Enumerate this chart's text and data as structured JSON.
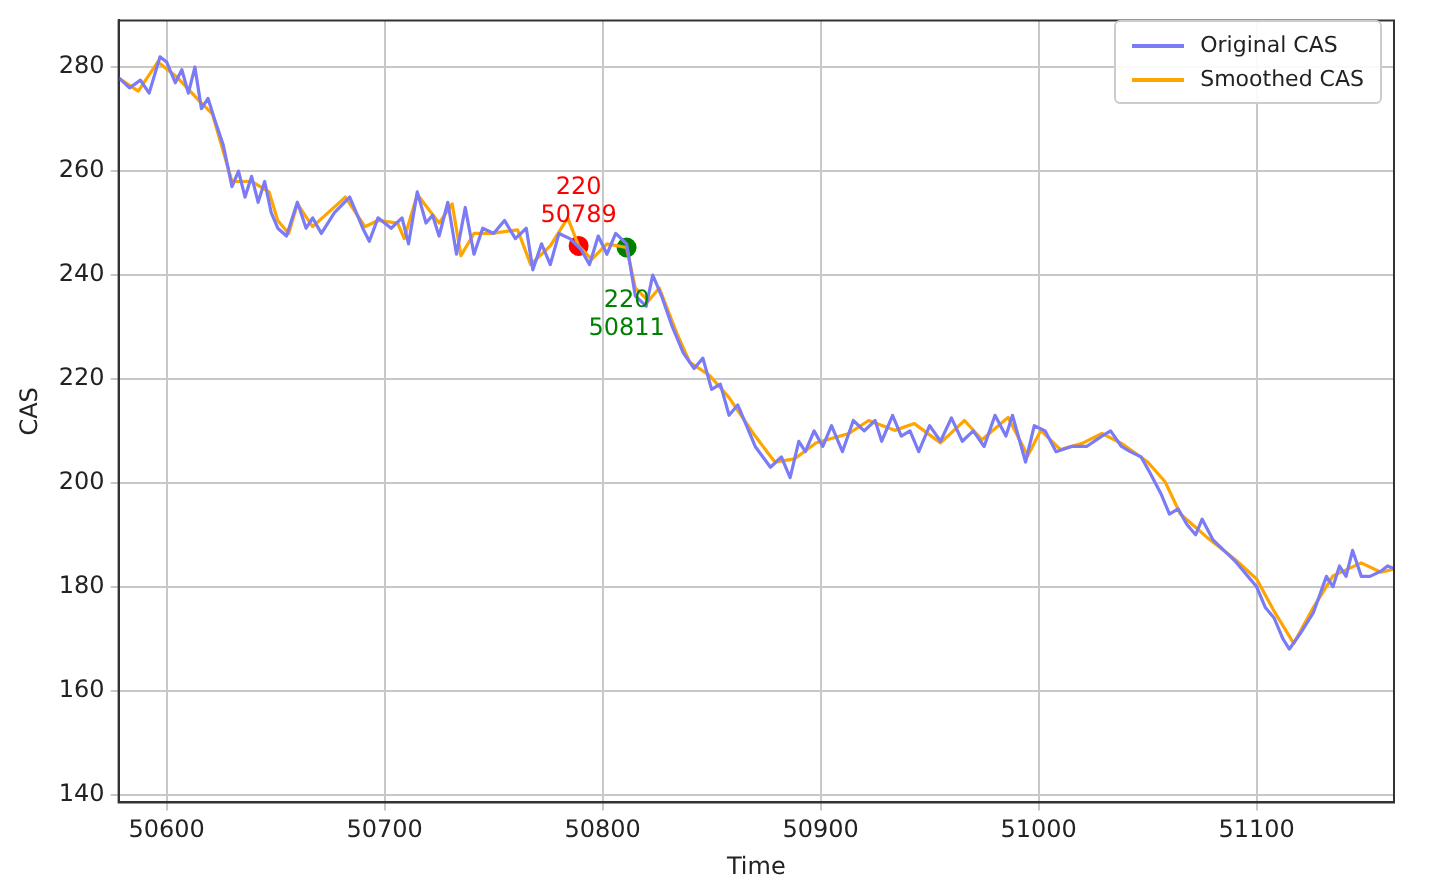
{
  "chart_data": {
    "type": "line",
    "xlabel": "Time",
    "ylabel": "CAS",
    "xlim": [
      50578,
      51163
    ],
    "ylim": [
      138.5,
      289
    ],
    "xticks": [
      50600,
      50700,
      50800,
      50900,
      51000,
      51100
    ],
    "yticks": [
      140,
      160,
      180,
      200,
      220,
      240,
      260,
      280
    ],
    "grid": true,
    "legend": "top right",
    "series": [
      {
        "name": "Original CAS",
        "color": "#7b7bf5",
        "type": "line",
        "marker": "none",
        "x": [
          50578,
          50583,
          50588,
          50592,
          50597,
          50600,
          50604,
          50607,
          50610,
          50613,
          50616,
          50619,
          50622,
          50626,
          50630,
          50633,
          50636,
          50639,
          50642,
          50645,
          50648,
          50651,
          50655,
          50660,
          50664,
          50667,
          50671,
          50677,
          50684,
          50690,
          50693,
          50697,
          50703,
          50708,
          50711,
          50715,
          50719,
          50722,
          50725,
          50729,
          50733,
          50737,
          50741,
          50745,
          50750,
          50755,
          50760,
          50765,
          50768,
          50772,
          50776,
          50780,
          50785,
          50790,
          50794,
          50798,
          50802,
          50806,
          50811,
          50815,
          50820,
          50823,
          50827,
          50832,
          50837,
          50842,
          50846,
          50850,
          50854,
          50858,
          50862,
          50866,
          50870,
          50877,
          50882,
          50886,
          50890,
          50893,
          50897,
          50901,
          50905,
          50910,
          50915,
          50920,
          50925,
          50928,
          50933,
          50937,
          50941,
          50945,
          50950,
          50955,
          50960,
          50965,
          50970,
          50975,
          50980,
          50985,
          50988,
          50994,
          50998,
          51003,
          51008,
          51015,
          51022,
          51029,
          51033,
          51038,
          51042,
          51047,
          51051,
          51056,
          51060,
          51064,
          51068,
          51072,
          51075,
          51080,
          51085,
          51090,
          51096,
          51100,
          51104,
          51108,
          51112,
          51115,
          51120,
          51126,
          51132,
          51135,
          51138,
          51141,
          51144,
          51148,
          51152,
          51157,
          51160,
          51163
        ],
        "values": [
          278,
          276,
          277.5,
          275,
          282,
          281,
          277,
          279.5,
          275,
          280,
          272,
          274,
          270,
          265,
          257,
          260,
          255,
          259,
          254,
          258,
          252,
          249,
          247.5,
          254,
          249,
          251,
          248,
          252,
          255,
          249,
          246.5,
          251,
          249,
          251,
          246,
          256,
          250,
          251.5,
          247.5,
          254,
          244,
          253,
          244,
          249,
          248,
          250.5,
          247,
          249,
          241,
          246,
          242,
          248,
          247,
          245,
          242,
          247.5,
          244,
          248,
          246,
          236,
          234,
          240,
          236,
          230,
          225,
          222,
          224,
          218,
          219,
          213,
          215,
          211,
          207,
          203,
          205,
          201,
          208,
          206,
          210,
          207,
          211,
          206,
          212,
          210,
          212,
          208,
          213,
          209,
          210,
          206,
          211,
          208,
          212.5,
          208,
          210,
          207,
          213,
          209,
          213,
          204,
          211,
          210,
          206,
          207,
          207,
          209,
          210,
          207,
          206,
          205,
          202,
          198,
          194,
          195,
          192,
          190,
          193,
          189,
          187,
          185,
          182,
          180,
          176,
          174,
          170,
          168,
          171,
          175,
          182,
          180,
          184,
          182,
          187,
          182,
          182,
          183,
          184,
          183.5
        ]
      },
      {
        "name": "Smoothed CAS",
        "color": "#ffa500",
        "type": "line",
        "marker": "none",
        "x": [
          50578,
          50587,
          50596,
          50605,
          50615,
          50621,
          50630,
          50639,
          50647,
          50651,
          50656,
          50660,
          50667,
          50682,
          50691,
          50697,
          50706,
          50709,
          50715,
          50725,
          50731,
          50735,
          50741,
          50749,
          50761,
          50767,
          50776,
          50784,
          50789,
          50795,
          50802,
          50811,
          50815,
          50821,
          50826,
          50834,
          50840,
          50849,
          50858,
          50870,
          50879,
          50888,
          50898,
          50913,
          50922,
          50934,
          50943,
          50955,
          50966,
          50974,
          50986,
          50995,
          51001,
          51010,
          51020,
          51029,
          51038,
          51050,
          51058,
          51065,
          51077,
          51090,
          51100,
          51108,
          51117,
          51126,
          51135,
          51148,
          51157,
          51163
        ],
        "values": [
          277.9,
          275.4,
          281,
          278,
          273.5,
          271,
          258,
          258,
          256,
          250.5,
          248,
          253.7,
          249.3,
          255,
          249.3,
          250.5,
          250,
          247,
          255.5,
          250,
          253.7,
          243.7,
          248,
          248,
          248.7,
          242,
          245.6,
          251,
          245.6,
          243,
          246,
          245.3,
          237.5,
          235,
          237.5,
          228.8,
          223.2,
          220.7,
          216.4,
          209,
          204,
          204.6,
          207.7,
          209.5,
          212,
          210.1,
          211.4,
          207.7,
          212,
          208.3,
          212.6,
          205.2,
          210.1,
          206.4,
          207.6,
          209.5,
          207.6,
          204,
          200.2,
          194,
          189.6,
          185.3,
          181.5,
          175.3,
          169.1,
          176,
          182.1,
          184.6,
          182.8,
          183.4
        ]
      },
      {
        "color": "#ff0000",
        "type": "scatter",
        "marker": "circle",
        "x": [
          50789
        ],
        "values": [
          245.6
        ]
      },
      {
        "color": "#008000",
        "type": "scatter",
        "marker": "circle",
        "x": [
          50811
        ],
        "values": [
          245.3
        ]
      }
    ],
    "annotations": [
      "220\n50789",
      "220\n50811"
    ]
  }
}
